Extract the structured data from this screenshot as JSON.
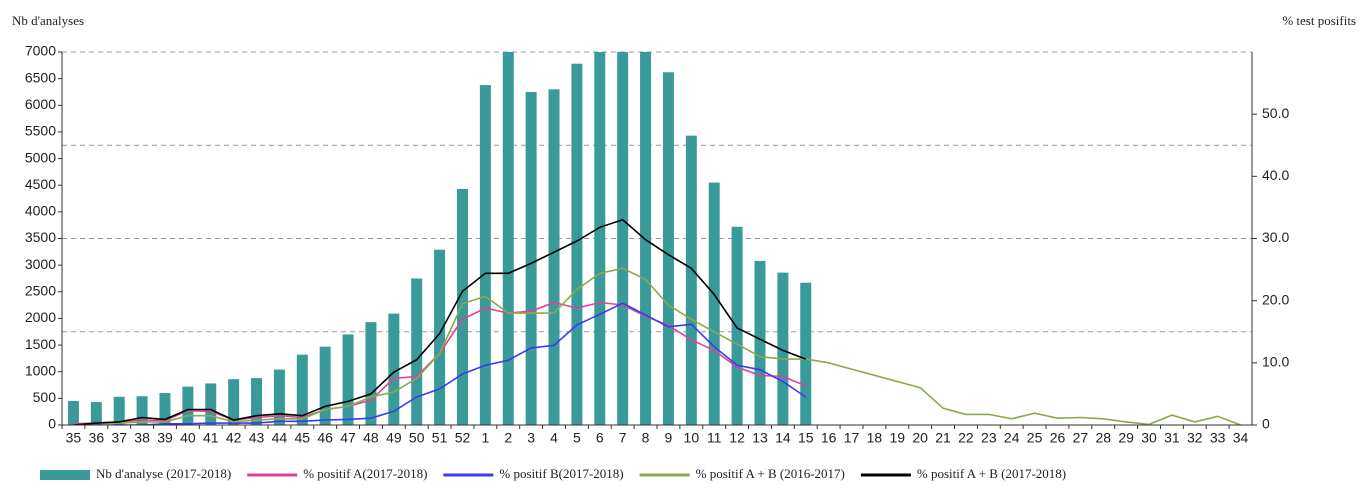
{
  "chart_data": {
    "type": "combo",
    "y_label": "Nb d'analyses",
    "y2_label": "% test posifits",
    "categories": [
      "35",
      "36",
      "37",
      "38",
      "39",
      "40",
      "41",
      "42",
      "43",
      "44",
      "45",
      "46",
      "47",
      "48",
      "49",
      "50",
      "51",
      "52",
      "1",
      "2",
      "3",
      "4",
      "5",
      "6",
      "7",
      "8",
      "9",
      "10",
      "11",
      "12",
      "13",
      "14",
      "15",
      "16",
      "17",
      "18",
      "19",
      "20",
      "21",
      "22",
      "23",
      "24",
      "25",
      "26",
      "27",
      "28",
      "29",
      "30",
      "31",
      "32",
      "33",
      "34"
    ],
    "ylim": [
      0,
      7000
    ],
    "yticks": [
      0,
      500,
      1000,
      1500,
      2000,
      2500,
      3000,
      3500,
      4000,
      4500,
      5000,
      5500,
      6000,
      6500,
      7000
    ],
    "ygrid": [
      1750,
      3500,
      5250,
      7000
    ],
    "y2lim": [
      0,
      60
    ],
    "y2ticks": [
      0,
      {
        "value": 10,
        "label": "10.0"
      },
      {
        "value": 20,
        "label": "20.0"
      },
      {
        "value": 30,
        "label": "30.0"
      },
      {
        "value": 40,
        "label": "40.0"
      },
      {
        "value": 50,
        "label": "50.0"
      }
    ],
    "series": [
      {
        "name": "Nb d'analyse (2017-2018)",
        "type": "bar",
        "color": "#3a9a9a",
        "values": [
          450,
          430,
          530,
          540,
          600,
          720,
          780,
          860,
          880,
          1040,
          1320,
          1470,
          1700,
          1930,
          2090,
          2750,
          3290,
          4430,
          6380,
          7200,
          6250,
          6300,
          6780,
          7100,
          7300,
          7200,
          6620,
          5430,
          4550,
          3720,
          3080,
          2860,
          2670,
          null,
          null,
          null,
          null,
          null,
          null,
          null,
          null,
          null,
          null,
          null,
          null,
          null,
          null,
          null,
          null,
          null,
          null,
          null
        ]
      },
      {
        "name": "% positif A(2017-2018)",
        "type": "line",
        "axis": "y2",
        "color": "#e0409a",
        "values": [
          0.2,
          0.3,
          0.5,
          0.8,
          0.7,
          2.3,
          2.2,
          0.8,
          1.2,
          1.5,
          1.2,
          2.5,
          3,
          4,
          7.5,
          7.8,
          11.5,
          17,
          18.8,
          18,
          18.3,
          19.7,
          18.8,
          19.7,
          19.3,
          17.5,
          16,
          13.7,
          12,
          9.3,
          8,
          7.8,
          6.3,
          null,
          null,
          null,
          null,
          null,
          null,
          null,
          null,
          null,
          null,
          null,
          null,
          null,
          null,
          null,
          null,
          null,
          null,
          null
        ]
      },
      {
        "name": "% positif B(2017-2018)",
        "type": "line",
        "axis": "y2",
        "color": "#3a3af0",
        "values": [
          0,
          0,
          0,
          0,
          0.2,
          0.2,
          0.3,
          0.3,
          0.3,
          0.6,
          0.6,
          0.8,
          0.9,
          1.1,
          2.2,
          4.5,
          5.8,
          8.2,
          9.6,
          10.4,
          12.4,
          12.8,
          16.1,
          17.8,
          19.6,
          17.7,
          15.8,
          16.2,
          12.6,
          9.6,
          8.9,
          7,
          4.5,
          null,
          null,
          null,
          null,
          null,
          null,
          null,
          null,
          null,
          null,
          null,
          null,
          null,
          null,
          null,
          null,
          null,
          null,
          null
        ]
      },
      {
        "name": "% positif A + B (2016-2017)",
        "type": "line",
        "axis": "y2",
        "color": "#8aaa4a",
        "values": [
          0,
          0.3,
          0.3,
          0.5,
          0.5,
          1.5,
          1.5,
          0.5,
          0.8,
          1,
          1,
          2.5,
          3,
          4.5,
          5.3,
          7.5,
          11.5,
          19.5,
          20.7,
          18,
          18,
          18,
          21.8,
          24.4,
          25.2,
          23.4,
          19.3,
          17,
          15,
          13,
          11,
          10.6,
          10.6,
          10,
          9,
          8,
          7,
          6,
          2.7,
          1.7,
          1.7,
          1,
          1.9,
          1.1,
          1.2,
          1,
          0.5,
          0.1,
          1.6,
          0.5,
          1.4,
          0
        ]
      },
      {
        "name": "% positif A + B (2017-2018)",
        "type": "line",
        "axis": "y2",
        "color": "#000000",
        "values": [
          0,
          0.3,
          0.5,
          1.2,
          0.9,
          2.5,
          2.5,
          0.8,
          1.5,
          1.8,
          1.5,
          3,
          3.8,
          5,
          8.5,
          10.5,
          14.7,
          21.5,
          24.4,
          24.4,
          26,
          27.8,
          29.6,
          31.8,
          33,
          29.8,
          27.4,
          25.2,
          21,
          15.6,
          13.8,
          12,
          10.6,
          null,
          null,
          null,
          null,
          null,
          null,
          null,
          null,
          null,
          null,
          null,
          null,
          null,
          null,
          null,
          null,
          null,
          null,
          null
        ]
      }
    ]
  }
}
